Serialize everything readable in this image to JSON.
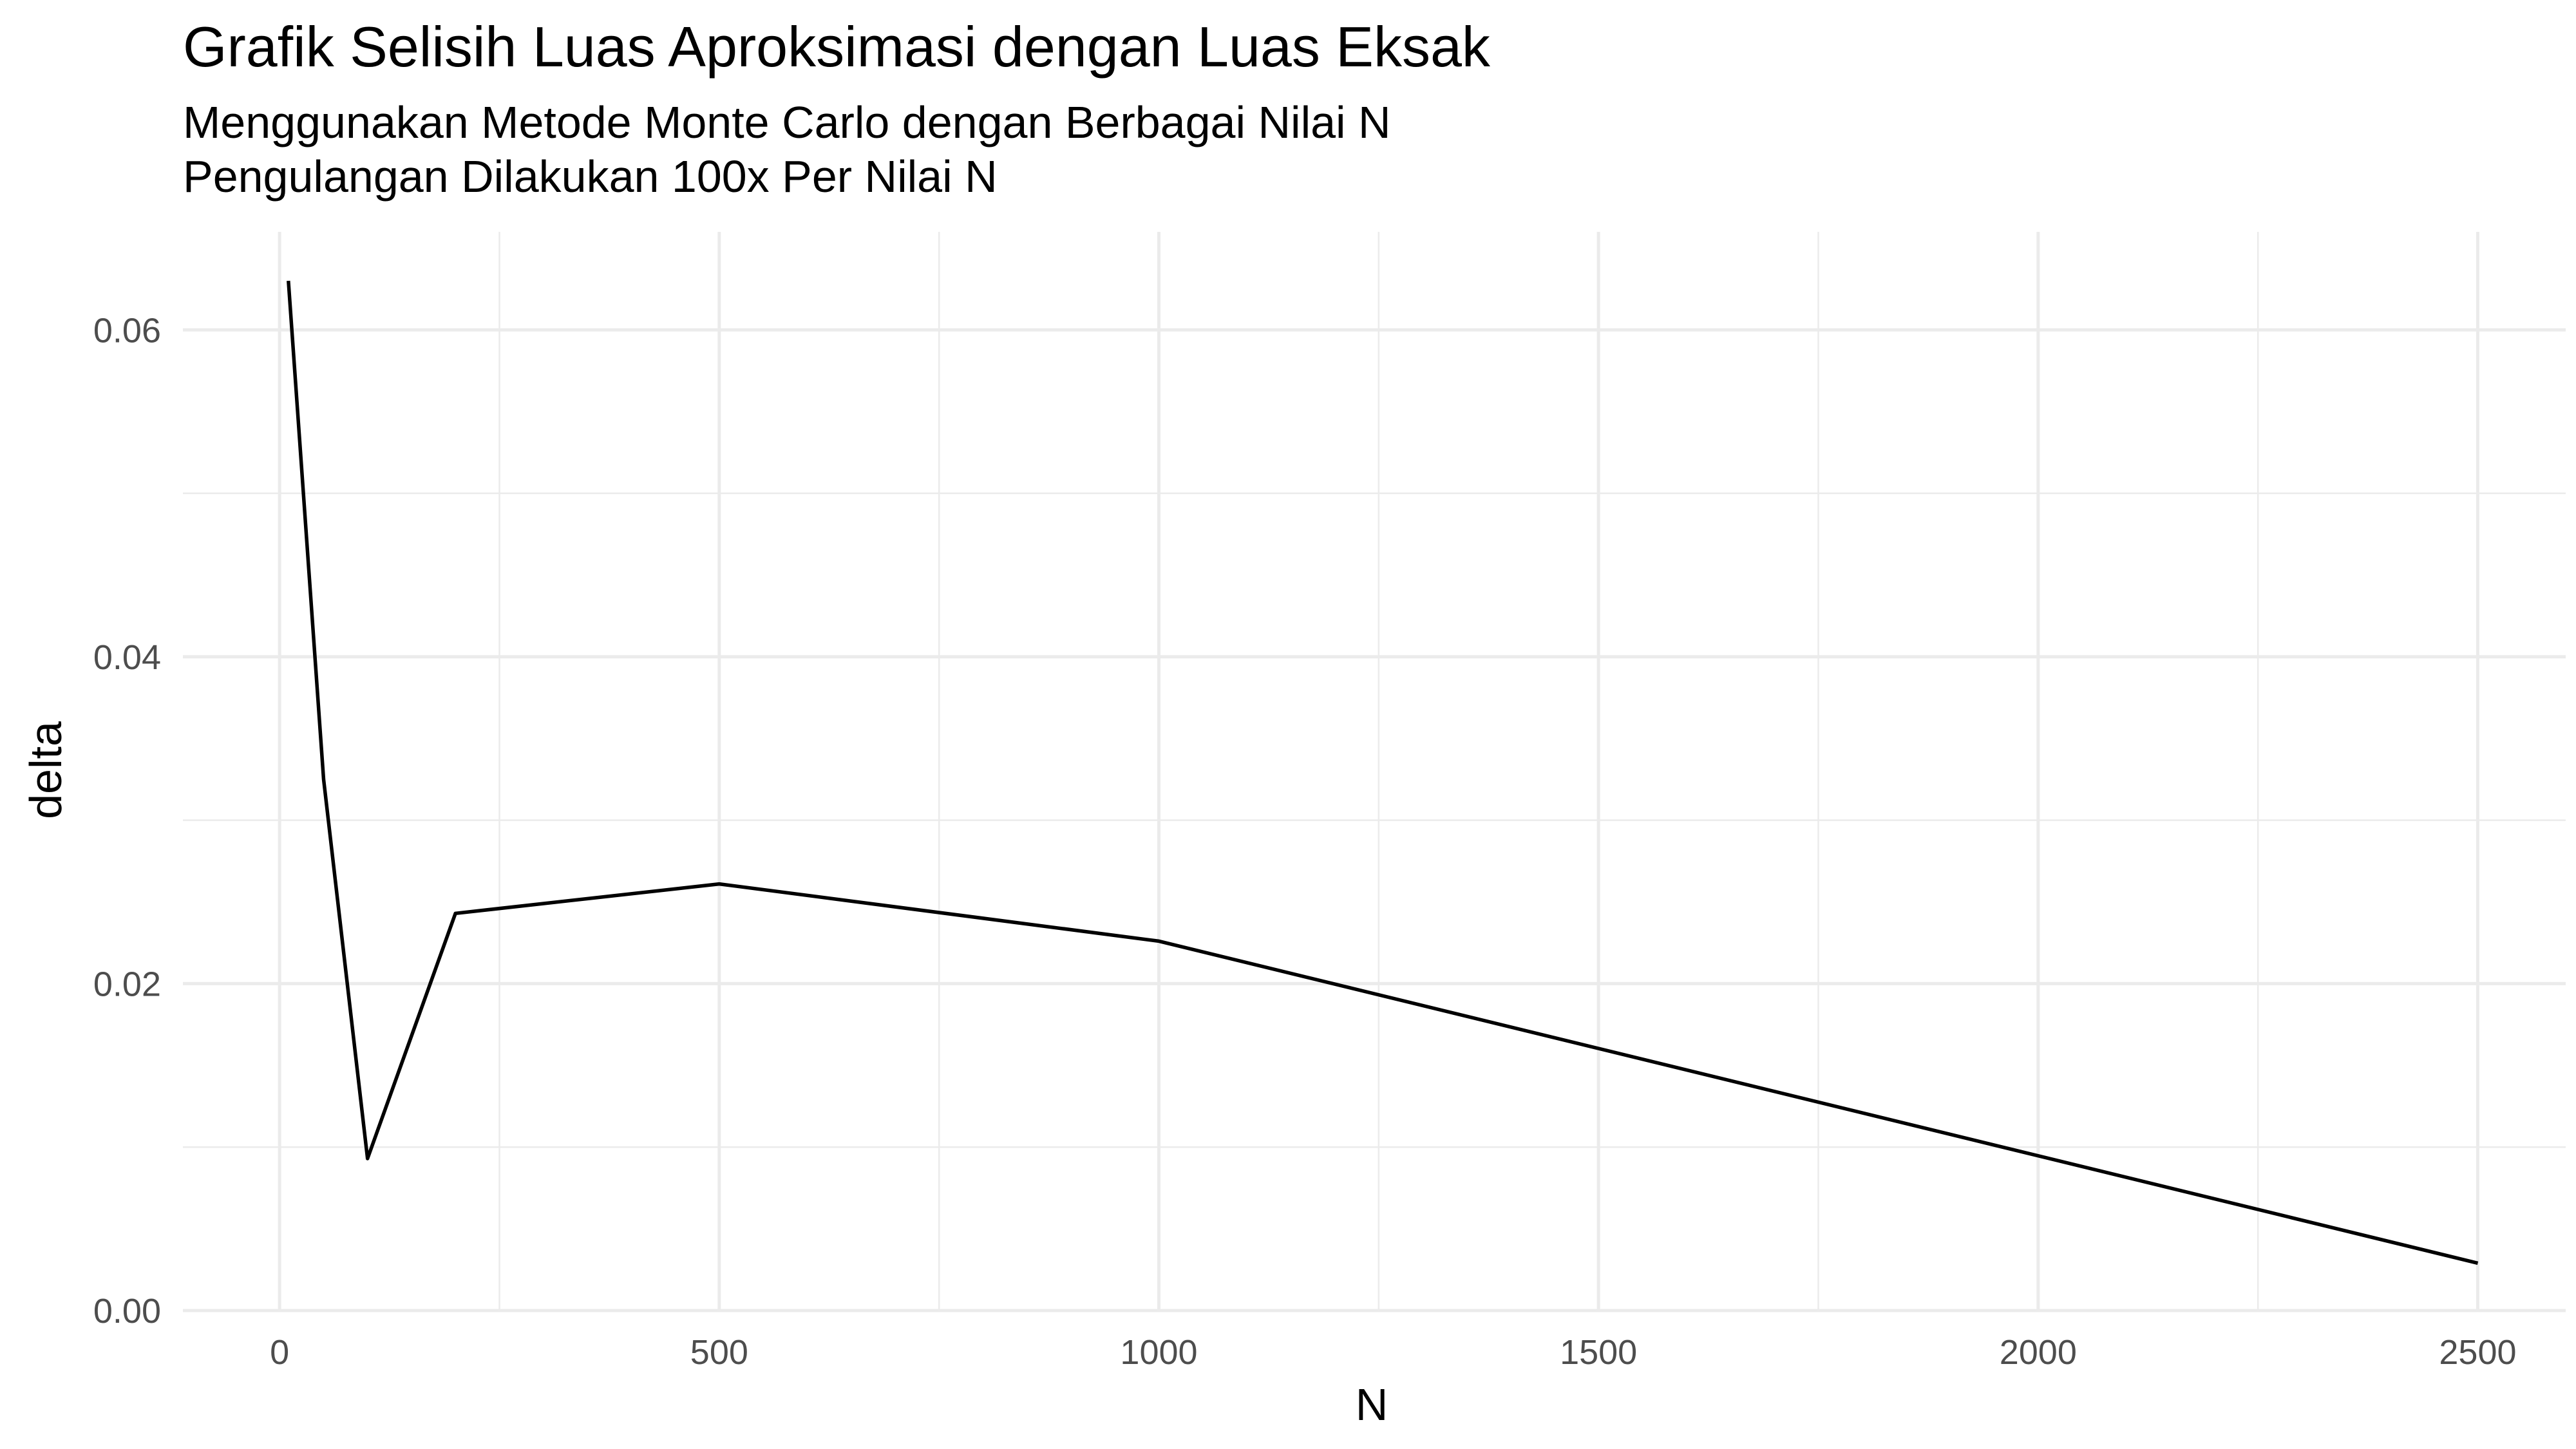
{
  "chart_data": {
    "type": "line",
    "title": "Grafik Selisih Luas Aproksimasi dengan Luas Eksak",
    "subtitle_lines": [
      "Menggunakan Metode Monte Carlo dengan Berbagai Nilai N",
      "Pengulangan Dilakukan 100x Per Nilai N"
    ],
    "xlabel": "N",
    "ylabel": "delta",
    "x": [
      10,
      50,
      100,
      200,
      500,
      1000,
      2500
    ],
    "series": [
      {
        "values": [
          0.063,
          0.0325,
          0.0093,
          0.0243,
          0.0261,
          0.0226,
          0.0029
        ],
        "color": "#000000"
      }
    ],
    "xlim": [
      -110,
      2600
    ],
    "ylim": [
      0,
      0.066
    ],
    "x_ticks": [
      0,
      500,
      1000,
      1500,
      2000,
      2500
    ],
    "x_tick_labels": [
      "0",
      "500",
      "1000",
      "1500",
      "2000",
      "2500"
    ],
    "x_minor_ticks": [
      250,
      750,
      1250,
      1750,
      2250
    ],
    "y_ticks": [
      0,
      0.02,
      0.04,
      0.06
    ],
    "y_tick_labels": [
      "0.00",
      "0.02",
      "0.04",
      "0.06"
    ],
    "y_minor_ticks": [
      0.01,
      0.03,
      0.05
    ],
    "grid": true,
    "grid_color": "#ebebeb",
    "background": "#ffffff"
  }
}
